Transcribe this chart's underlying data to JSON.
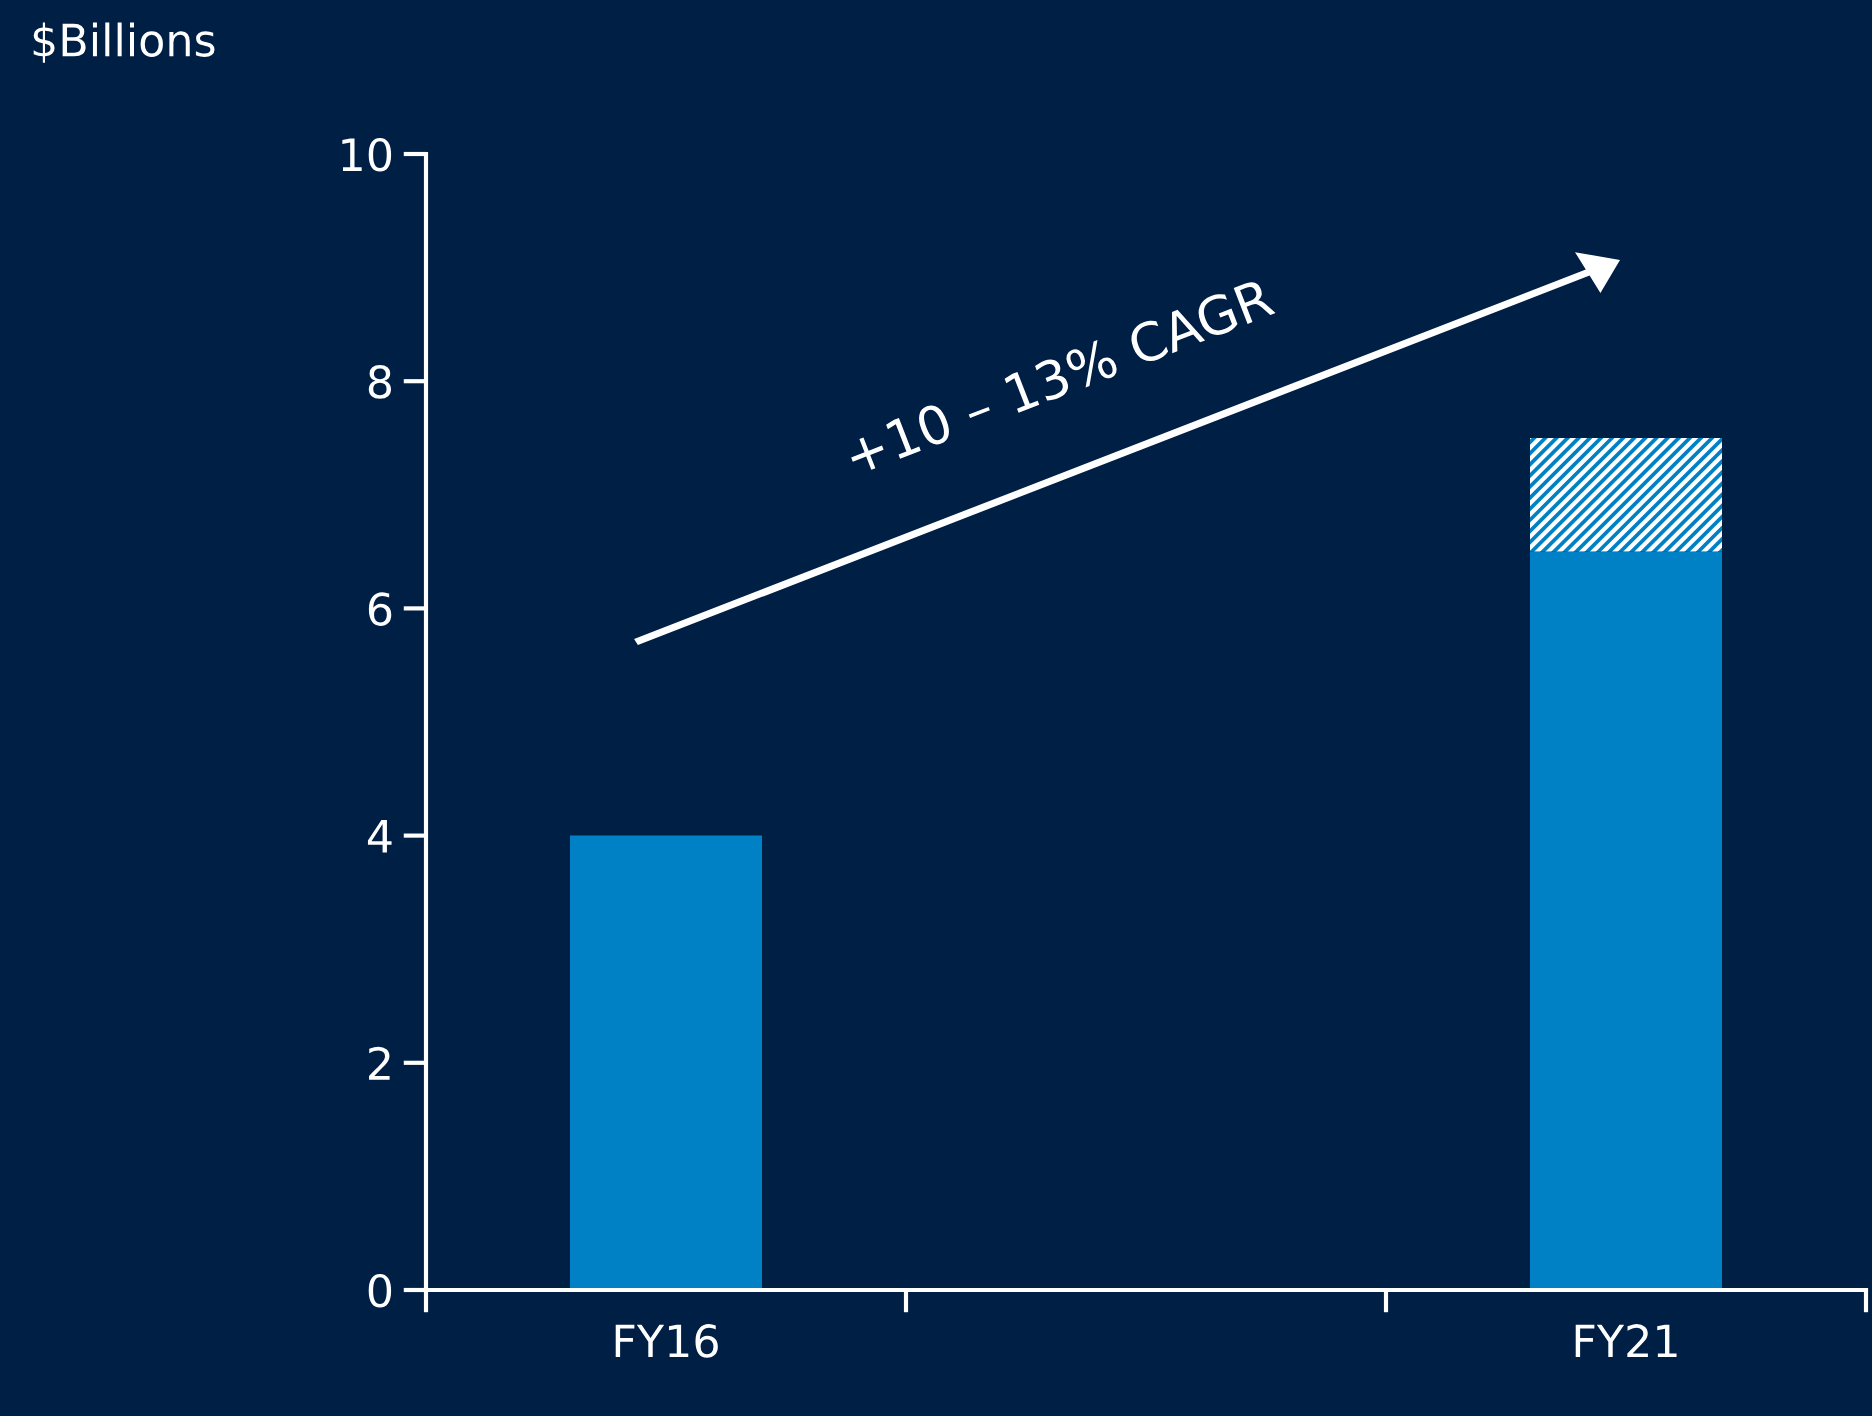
{
  "chart_data": {
    "type": "bar",
    "ylabel": "$Billions",
    "categories": [
      "FY16",
      null,
      "FY21"
    ],
    "stacked": true,
    "series": [
      {
        "color": "#0081c6",
        "values": [
          4.0,
          null,
          6.5
        ]
      },
      {
        "color": "#0081c6",
        "values": [
          null,
          null,
          1.0
        ]
      }
    ],
    "ylim": [
      0,
      10
    ],
    "yticks": [
      0,
      2,
      4,
      6,
      8,
      10
    ],
    "grid": false,
    "annotations": [
      "+10 – 13% CAGR"
    ]
  }
}
